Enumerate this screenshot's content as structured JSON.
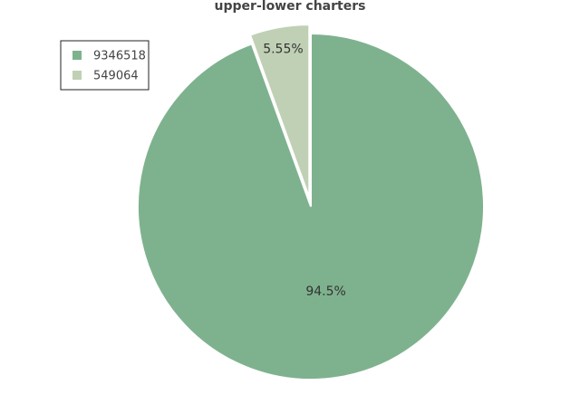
{
  "chart_data": {
    "type": "pie",
    "title": "upper-lower charters",
    "series": [
      {
        "name": "9346518",
        "color": "#7eb28e",
        "values": [
          94.5
        ],
        "value_labels": [
          "94.5%"
        ]
      },
      {
        "name": "549064",
        "color": "#c0d0b5",
        "values": [
          5.55
        ],
        "value_labels": [
          "5.55%"
        ]
      }
    ],
    "legend": "top-left"
  }
}
